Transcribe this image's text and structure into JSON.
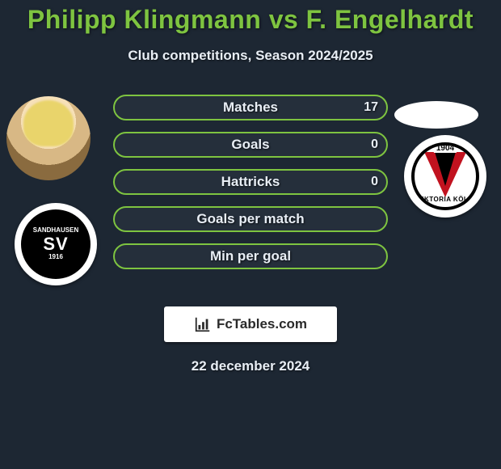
{
  "title": "Philipp Klingmann vs F. Engelhardt",
  "subtitle": "Club competitions, Season 2024/2025",
  "date": "22 december 2024",
  "brand": "FcTables.com",
  "left_badge": {
    "top": "SANDHAUSEN",
    "mid": "SV",
    "year": "1916"
  },
  "right_badge": {
    "year": "1904",
    "text": "VIKTORIA KÖLN"
  },
  "stats": {
    "rows": [
      {
        "label": "Matches",
        "left": "",
        "right": "17",
        "fill_pct": 0
      },
      {
        "label": "Goals",
        "left": "",
        "right": "0",
        "fill_pct": 0
      },
      {
        "label": "Hattricks",
        "left": "",
        "right": "0",
        "fill_pct": 0
      },
      {
        "label": "Goals per match",
        "left": "",
        "right": "",
        "fill_pct": 0
      },
      {
        "label": "Min per goal",
        "left": "",
        "right": "",
        "fill_pct": 0
      }
    ],
    "bar_border_color": "#7ec440",
    "bar_fill_color": "#7ec440",
    "title_color": "#7ec440",
    "bg_color": "#1d2733",
    "text_color": "#e8eef5"
  }
}
